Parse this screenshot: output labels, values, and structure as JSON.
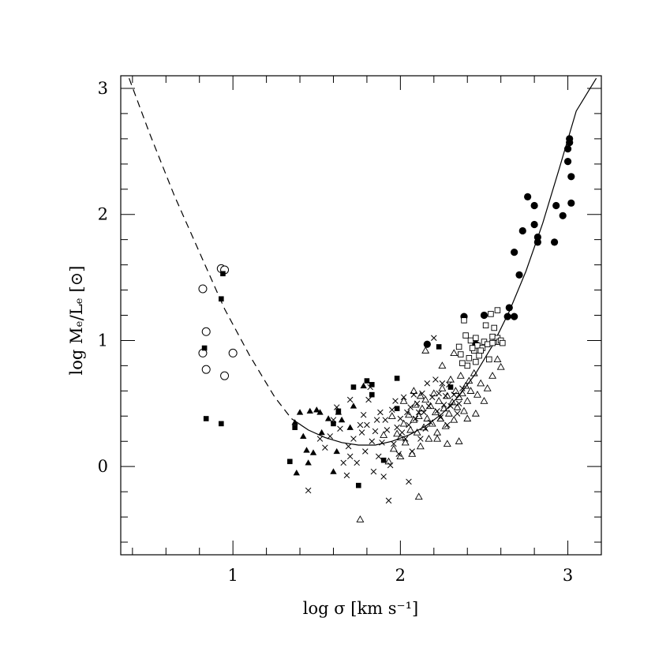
{
  "chart_data": {
    "type": "scatter",
    "xlabel": "log σ [km s⁻¹]",
    "ylabel": "log Mₑ/Lₑ [⊙]",
    "xlim": [
      0.33,
      3.2
    ],
    "ylim": [
      -0.7,
      3.1
    ],
    "x_ticks": [
      1,
      2,
      3
    ],
    "y_ticks": [
      0,
      1,
      2,
      3
    ],
    "grid": false,
    "legend": "none",
    "curves": [
      {
        "style": "dashed",
        "points": [
          [
            0.38,
            3.08
          ],
          [
            0.5,
            2.65
          ],
          [
            0.65,
            2.15
          ],
          [
            0.8,
            1.7
          ],
          [
            0.95,
            1.25
          ],
          [
            1.1,
            0.88
          ],
          [
            1.25,
            0.55
          ],
          [
            1.35,
            0.38
          ]
        ]
      },
      {
        "style": "solid",
        "points": [
          [
            1.35,
            0.38
          ],
          [
            1.45,
            0.29
          ],
          [
            1.55,
            0.23
          ],
          [
            1.65,
            0.19
          ],
          [
            1.75,
            0.17
          ],
          [
            1.85,
            0.17
          ],
          [
            1.95,
            0.2
          ],
          [
            2.05,
            0.25
          ],
          [
            2.15,
            0.32
          ],
          [
            2.25,
            0.42
          ],
          [
            2.35,
            0.56
          ],
          [
            2.45,
            0.74
          ],
          [
            2.55,
            0.96
          ],
          [
            2.65,
            1.23
          ],
          [
            2.75,
            1.55
          ],
          [
            2.85,
            1.93
          ],
          [
            2.95,
            2.37
          ],
          [
            3.05,
            2.82
          ],
          [
            3.17,
            3.08
          ]
        ]
      }
    ],
    "series": [
      {
        "marker": "open-circle",
        "points": [
          [
            0.93,
            1.57
          ],
          [
            0.95,
            1.56
          ],
          [
            0.82,
            1.41
          ],
          [
            0.84,
            1.07
          ],
          [
            0.82,
            0.9
          ],
          [
            0.84,
            0.77
          ],
          [
            0.95,
            0.72
          ],
          [
            1.0,
            0.9
          ]
        ]
      },
      {
        "marker": "filled-square",
        "points": [
          [
            0.94,
            1.53
          ],
          [
            0.93,
            1.33
          ],
          [
            0.83,
            0.94
          ],
          [
            0.84,
            0.38
          ],
          [
            0.93,
            0.34
          ],
          [
            1.34,
            0.04
          ],
          [
            1.37,
            0.31
          ],
          [
            1.6,
            0.34
          ],
          [
            1.63,
            0.44
          ],
          [
            1.72,
            0.63
          ],
          [
            1.8,
            0.68
          ],
          [
            1.83,
            0.57
          ],
          [
            1.83,
            0.65
          ],
          [
            1.75,
            -0.15
          ],
          [
            1.9,
            0.05
          ],
          [
            1.98,
            0.7
          ],
          [
            1.98,
            0.46
          ],
          [
            2.23,
            0.95
          ],
          [
            2.3,
            0.63
          ]
        ]
      },
      {
        "marker": "filled-triangle",
        "points": [
          [
            1.37,
            0.35
          ],
          [
            1.4,
            0.43
          ],
          [
            1.42,
            0.24
          ],
          [
            1.46,
            0.44
          ],
          [
            1.5,
            0.45
          ],
          [
            1.52,
            0.43
          ],
          [
            1.53,
            0.27
          ],
          [
            1.57,
            0.38
          ],
          [
            1.44,
            0.13
          ],
          [
            1.48,
            0.11
          ],
          [
            1.45,
            0.03
          ],
          [
            1.38,
            -0.05
          ],
          [
            1.6,
            -0.04
          ],
          [
            1.62,
            0.12
          ],
          [
            1.63,
            0.43
          ],
          [
            1.65,
            0.37
          ],
          [
            1.7,
            0.31
          ],
          [
            1.72,
            0.48
          ],
          [
            1.78,
            0.64
          ]
        ]
      },
      {
        "marker": "filled-circle",
        "points": [
          [
            2.16,
            0.97
          ],
          [
            2.38,
            1.19
          ],
          [
            2.5,
            1.2
          ],
          [
            2.65,
            1.26
          ],
          [
            2.64,
            1.19
          ],
          [
            2.68,
            1.19
          ],
          [
            2.68,
            1.7
          ],
          [
            2.71,
            1.52
          ],
          [
            2.73,
            1.87
          ],
          [
            2.76,
            2.14
          ],
          [
            2.8,
            2.07
          ],
          [
            2.8,
            1.92
          ],
          [
            2.82,
            1.82
          ],
          [
            2.82,
            1.78
          ],
          [
            2.92,
            1.78
          ],
          [
            2.93,
            2.07
          ],
          [
            2.97,
            1.99
          ],
          [
            3.0,
            2.52
          ],
          [
            3.01,
            2.57
          ],
          [
            3.0,
            2.42
          ],
          [
            3.01,
            2.6
          ],
          [
            3.02,
            2.3
          ],
          [
            3.02,
            2.09
          ],
          [
            2.45,
            0.97
          ]
        ]
      },
      {
        "marker": "open-square",
        "points": [
          [
            2.38,
            1.16
          ],
          [
            2.39,
            1.04
          ],
          [
            2.42,
            1.0
          ],
          [
            2.44,
            0.92
          ],
          [
            2.45,
            1.02
          ],
          [
            2.46,
            0.96
          ],
          [
            2.47,
            0.88
          ],
          [
            2.49,
            0.94
          ],
          [
            2.5,
            0.99
          ],
          [
            2.51,
            1.12
          ],
          [
            2.52,
            0.97
          ],
          [
            2.54,
            1.21
          ],
          [
            2.55,
            1.03
          ],
          [
            2.56,
            1.1
          ],
          [
            2.57,
            0.99
          ],
          [
            2.58,
            1.02
          ],
          [
            2.59,
            0.99
          ],
          [
            2.6,
            1.0
          ],
          [
            2.61,
            0.98
          ],
          [
            2.4,
            0.8
          ],
          [
            2.41,
            0.86
          ],
          [
            2.43,
            0.94
          ],
          [
            2.36,
            0.89
          ],
          [
            2.37,
            0.82
          ],
          [
            2.48,
            0.92
          ],
          [
            2.53,
            0.85
          ],
          [
            2.55,
            0.98
          ],
          [
            2.35,
            0.95
          ],
          [
            2.45,
            0.83
          ],
          [
            2.58,
            1.24
          ]
        ]
      },
      {
        "marker": "cross",
        "points": [
          [
            1.45,
            -0.19
          ],
          [
            1.55,
            0.15
          ],
          [
            1.58,
            0.24
          ],
          [
            1.62,
            0.47
          ],
          [
            1.64,
            0.3
          ],
          [
            1.66,
            0.03
          ],
          [
            1.68,
            -0.07
          ],
          [
            1.69,
            0.16
          ],
          [
            1.7,
            0.08
          ],
          [
            1.72,
            0.22
          ],
          [
            1.74,
            0.03
          ],
          [
            1.76,
            0.33
          ],
          [
            1.77,
            0.27
          ],
          [
            1.78,
            0.41
          ],
          [
            1.79,
            0.12
          ],
          [
            1.8,
            0.33
          ],
          [
            1.81,
            0.53
          ],
          [
            1.82,
            0.63
          ],
          [
            1.83,
            0.2
          ],
          [
            1.84,
            -0.04
          ],
          [
            1.85,
            0.28
          ],
          [
            1.86,
            0.37
          ],
          [
            1.87,
            0.08
          ],
          [
            1.88,
            0.43
          ],
          [
            1.89,
            0.19
          ],
          [
            1.9,
            -0.08
          ],
          [
            1.91,
            0.37
          ],
          [
            1.92,
            0.29
          ],
          [
            1.93,
            -0.27
          ],
          [
            1.94,
            0.01
          ],
          [
            1.95,
            0.45
          ],
          [
            1.96,
            0.18
          ],
          [
            1.97,
            0.52
          ],
          [
            1.98,
            0.31
          ],
          [
            1.99,
            0.1
          ],
          [
            2.0,
            0.38
          ],
          [
            2.01,
            0.27
          ],
          [
            2.02,
            0.55
          ],
          [
            2.03,
            0.22
          ],
          [
            2.04,
            0.43
          ],
          [
            2.05,
            0.33
          ],
          [
            2.06,
            0.47
          ],
          [
            2.07,
            0.12
          ],
          [
            2.08,
            0.57
          ],
          [
            2.09,
            0.38
          ],
          [
            2.1,
            0.5
          ],
          [
            2.11,
            0.43
          ],
          [
            2.12,
            0.22
          ],
          [
            2.13,
            0.58
          ],
          [
            2.14,
            0.43
          ],
          [
            2.15,
            0.3
          ],
          [
            2.16,
            0.66
          ],
          [
            2.17,
            0.48
          ],
          [
            2.18,
            0.35
          ],
          [
            2.19,
            0.55
          ],
          [
            2.2,
            1.02
          ],
          [
            2.21,
            0.69
          ],
          [
            2.22,
            0.44
          ],
          [
            2.23,
            0.58
          ],
          [
            2.24,
            0.39
          ],
          [
            2.25,
            0.66
          ],
          [
            2.26,
            0.49
          ],
          [
            2.27,
            0.56
          ],
          [
            2.28,
            0.33
          ],
          [
            2.29,
            0.65
          ],
          [
            2.3,
            0.48
          ],
          [
            2.32,
            0.57
          ],
          [
            2.34,
            0.42
          ],
          [
            2.35,
            0.5
          ],
          [
            2.37,
            0.62
          ],
          [
            1.7,
            0.53
          ],
          [
            1.6,
            0.37
          ],
          [
            1.52,
            0.22
          ],
          [
            2.05,
            -0.12
          ]
        ]
      },
      {
        "marker": "open-triangle",
        "points": [
          [
            1.76,
            -0.42
          ],
          [
            2.11,
            -0.24
          ],
          [
            1.93,
            0.04
          ],
          [
            1.96,
            0.14
          ],
          [
            1.98,
            0.26
          ],
          [
            2.0,
            0.08
          ],
          [
            2.02,
            0.34
          ],
          [
            2.03,
            0.19
          ],
          [
            2.05,
            0.41
          ],
          [
            2.06,
            0.29
          ],
          [
            2.07,
            0.1
          ],
          [
            2.08,
            0.37
          ],
          [
            2.09,
            0.49
          ],
          [
            2.1,
            0.27
          ],
          [
            2.11,
            0.4
          ],
          [
            2.12,
            0.16
          ],
          [
            2.13,
            0.46
          ],
          [
            2.14,
            0.31
          ],
          [
            2.15,
            0.53
          ],
          [
            2.16,
            0.38
          ],
          [
            2.17,
            0.22
          ],
          [
            2.18,
            0.48
          ],
          [
            2.19,
            0.34
          ],
          [
            2.2,
            0.58
          ],
          [
            2.21,
            0.43
          ],
          [
            2.22,
            0.27
          ],
          [
            2.23,
            0.52
          ],
          [
            2.24,
            0.38
          ],
          [
            2.25,
            0.62
          ],
          [
            2.26,
            0.46
          ],
          [
            2.27,
            0.32
          ],
          [
            2.28,
            0.56
          ],
          [
            2.29,
            0.42
          ],
          [
            2.3,
            0.69
          ],
          [
            2.31,
            0.51
          ],
          [
            2.32,
            0.37
          ],
          [
            2.33,
            0.6
          ],
          [
            2.34,
            0.47
          ],
          [
            2.35,
            0.55
          ],
          [
            2.36,
            0.72
          ],
          [
            2.37,
            0.58
          ],
          [
            2.38,
            0.44
          ],
          [
            2.39,
            0.64
          ],
          [
            2.4,
            0.52
          ],
          [
            2.41,
            0.68
          ],
          [
            2.42,
            0.6
          ],
          [
            2.44,
            0.74
          ],
          [
            2.46,
            0.57
          ],
          [
            2.48,
            0.66
          ],
          [
            2.5,
            0.52
          ],
          [
            2.52,
            0.62
          ],
          [
            2.55,
            0.72
          ],
          [
            2.58,
            0.85
          ],
          [
            2.6,
            0.79
          ],
          [
            2.22,
            0.22
          ],
          [
            2.28,
            0.18
          ],
          [
            2.35,
            0.2
          ],
          [
            2.12,
            0.56
          ],
          [
            2.08,
            0.6
          ],
          [
            2.02,
            0.52
          ],
          [
            2.15,
            0.92
          ],
          [
            2.25,
            0.8
          ],
          [
            2.4,
            0.38
          ],
          [
            2.45,
            0.42
          ],
          [
            2.32,
            0.9
          ],
          [
            1.9,
            0.25
          ],
          [
            1.95,
            0.4
          ],
          [
            2.0,
            0.23
          ]
        ]
      }
    ]
  }
}
